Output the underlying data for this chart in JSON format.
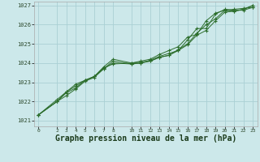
{
  "background_color": "#cce8ea",
  "grid_color": "#aad0d4",
  "line_color": "#2d6e2d",
  "marker_color": "#2d6e2d",
  "xlabel": "Graphe pression niveau de la mer (hPa)",
  "xlabel_fontsize": 7,
  "xlim": [
    -0.5,
    23.5
  ],
  "ylim": [
    1020.7,
    1027.2
  ],
  "yticks": [
    1021,
    1022,
    1023,
    1024,
    1025,
    1026,
    1027
  ],
  "xtick_labels": [
    "0",
    "2",
    "3",
    "4",
    "5",
    "6",
    "7",
    "8",
    "10",
    "11",
    "12",
    "13",
    "14",
    "15",
    "16",
    "17",
    "18",
    "19",
    "20",
    "21",
    "22",
    "23"
  ],
  "xtick_positions": [
    0,
    2,
    3,
    4,
    5,
    6,
    7,
    8,
    10,
    11,
    12,
    13,
    14,
    15,
    16,
    17,
    18,
    19,
    20,
    21,
    22,
    23
  ],
  "series": [
    {
      "x": [
        0,
        2,
        3,
        4,
        5,
        6,
        7,
        8,
        10,
        11,
        12,
        13,
        14,
        15,
        16,
        17,
        18,
        19,
        20,
        21,
        22,
        23
      ],
      "y": [
        1021.3,
        1022.0,
        1022.5,
        1022.8,
        1023.1,
        1023.3,
        1023.8,
        1024.2,
        1024.0,
        1024.05,
        1024.1,
        1024.3,
        1024.4,
        1024.7,
        1025.0,
        1025.55,
        1026.0,
        1026.3,
        1026.75,
        1026.8,
        1026.85,
        1026.9
      ]
    },
    {
      "x": [
        0,
        2,
        3,
        4,
        5,
        6,
        7,
        8,
        10,
        11,
        12,
        13,
        14,
        15,
        16,
        17,
        18,
        19,
        20,
        21,
        22,
        23
      ],
      "y": [
        1021.3,
        1022.0,
        1022.45,
        1022.7,
        1023.1,
        1023.3,
        1023.7,
        1024.0,
        1023.95,
        1024.0,
        1024.15,
        1024.35,
        1024.5,
        1024.65,
        1025.2,
        1025.8,
        1025.8,
        1026.55,
        1026.8,
        1026.75,
        1026.75,
        1026.9
      ]
    },
    {
      "x": [
        0,
        2,
        3,
        4,
        5,
        6,
        7,
        8,
        10,
        11,
        12,
        13,
        14,
        15,
        16,
        17,
        18,
        19,
        20,
        21,
        22,
        23
      ],
      "y": [
        1021.3,
        1022.1,
        1022.5,
        1022.9,
        1023.1,
        1023.3,
        1023.75,
        1023.95,
        1024.0,
        1024.1,
        1024.2,
        1024.45,
        1024.65,
        1024.85,
        1025.35,
        1025.5,
        1026.2,
        1026.6,
        1026.75,
        1026.7,
        1026.8,
        1027.0
      ]
    },
    {
      "x": [
        0,
        2,
        3,
        4,
        5,
        6,
        7,
        8,
        10,
        11,
        12,
        13,
        14,
        15,
        16,
        17,
        18,
        19,
        20,
        21,
        22,
        23
      ],
      "y": [
        1021.3,
        1022.0,
        1022.3,
        1022.65,
        1023.05,
        1023.25,
        1023.7,
        1024.1,
        1023.95,
        1024.0,
        1024.1,
        1024.3,
        1024.4,
        1024.65,
        1024.95,
        1025.45,
        1025.7,
        1026.2,
        1026.65,
        1026.7,
        1026.8,
        1027.0
      ]
    }
  ]
}
